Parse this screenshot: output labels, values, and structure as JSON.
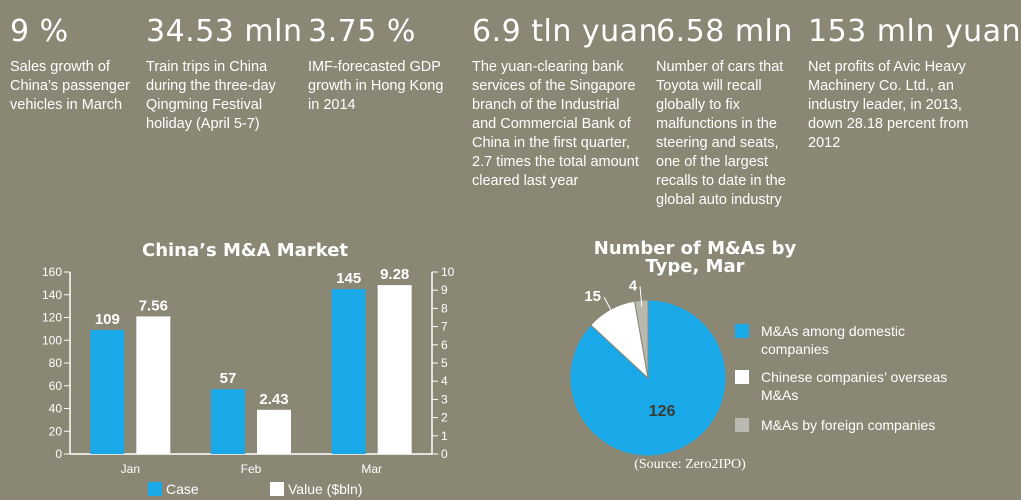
{
  "stats": [
    {
      "big": "9 %",
      "desc": "Sales growth of China’s passenger vehicles in March"
    },
    {
      "big": "34.53 mln",
      "desc": "Train trips in China during the three-day Qingming Festival holiday (April 5-7)"
    },
    {
      "big": "3.75 %",
      "desc": "IMF-forecasted GDP growth in Hong Kong in 2014"
    },
    {
      "big": "6.9 tln yuan",
      "desc": "The yuan-clearing bank services of the Singapore branch of the Industrial and Commercial Bank of China in the first quarter, 2.7 times the total amount cleared last year"
    },
    {
      "big": "6.58 mln",
      "desc": "Number of cars that Toyota will recall globally to fix malfunctions in the steering and seats, one of the largest recalls to date in the global auto industry"
    },
    {
      "big": "153 mln yuan",
      "desc": "Net profits of Avic Heavy Machinery Co. Ltd., an industry leader, in 2013, down 28.18 percent from 2012"
    }
  ],
  "colors": {
    "background": "#8a8775",
    "blue": "#1aa9e8",
    "white": "#ffffff",
    "gray": "#b9b9b1"
  },
  "chart_data": [
    {
      "type": "bar",
      "title": "China’s M&A Market",
      "categories": [
        "Jan",
        "Feb",
        "Mar"
      ],
      "series": [
        {
          "name": "Case",
          "values": [
            109,
            57,
            145
          ],
          "axis": "left",
          "color": "#1aa9e8"
        },
        {
          "name": "Value ($bln)",
          "values": [
            7.56,
            2.43,
            9.28
          ],
          "axis": "right",
          "color": "#ffffff"
        }
      ],
      "data_labels": {
        "Case": [
          "109",
          "57",
          "145"
        ],
        "Value ($bln)": [
          "7.56",
          "2.43",
          "9.28"
        ]
      },
      "ylim_left": [
        0,
        160
      ],
      "yticks_left": [
        "0",
        "20",
        "40",
        "60",
        "80",
        "100",
        "120",
        "140",
        "160"
      ],
      "ylim_right": [
        0,
        10
      ],
      "yticks_right": [
        "0",
        "1",
        "2",
        "3",
        "4",
        "5",
        "6",
        "7",
        "8",
        "9",
        "10"
      ],
      "grid": false,
      "legend": "bottom"
    },
    {
      "type": "pie",
      "title": "Number of M&As by Type, Mar",
      "slices": [
        {
          "name": "M&As among domestic companies",
          "value": 126,
          "label": "126",
          "color": "#1aa9e8"
        },
        {
          "name": "Chinese companies’ overseas M&As",
          "value": 15,
          "label": "15",
          "color": "#ffffff"
        },
        {
          "name": "M&As by foreign companies",
          "value": 4,
          "label": "4",
          "color": "#b9b9b1"
        }
      ],
      "legend": "right",
      "source": "(Source: Zero2IPO)"
    }
  ]
}
